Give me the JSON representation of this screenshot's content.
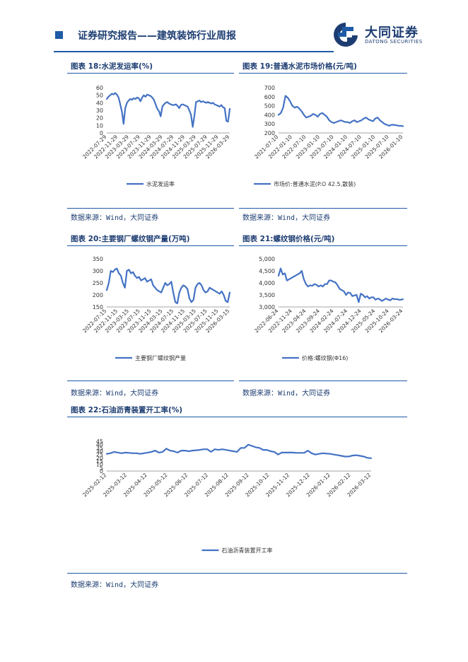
{
  "header": {
    "title": "证券研究报告——建筑装饰行业周报",
    "logo_cn": "大同证券",
    "logo_en": "DATONG SECURITIES"
  },
  "footer": {
    "page_number": ""
  },
  "colors": {
    "line": "#4472c4",
    "text": "#1d3d72",
    "rule": "#1f5aa6"
  },
  "charts": [
    {
      "figure_title": "图表 18:水泥发运率(%)",
      "source": "数据来源：Wind，大同证券"
    },
    {
      "figure_title": "图表 19:普通水泥市场价格(元/吨)",
      "source": "数据来源：Wind，大同证券"
    },
    {
      "figure_title": "图表 20:主要钢厂螺纹钢产量(万吨)",
      "source": "数据来源：Wind，大同证券"
    },
    {
      "figure_title": "图表 21:螺纹钢价格(元/吨)",
      "source": "数据来源：Wind，大同证券"
    },
    {
      "figure_title": "图表 22:石油沥青装置开工率(%)",
      "source": "数据来源：Wind，大同证券"
    }
  ],
  "chart_data": [
    {
      "type": "line",
      "title": "水泥发运率(%)",
      "yticks": [
        "0",
        "10",
        "20",
        "30",
        "40",
        "50",
        "60"
      ],
      "ylim": [
        0,
        60
      ],
      "xticks": [
        "2022-07-29",
        "2022-11-29",
        "2023-03-29",
        "2023-07-29",
        "2023-11-29",
        "2024-03-29",
        "2024-07-29",
        "2024-11-29",
        "2025-03-29",
        "2025-07-29",
        "2025-11-29",
        "2026-03-29"
      ],
      "series": [
        {
          "name": "水泥发运率",
          "values": [
            45,
            48,
            50,
            52,
            51,
            53,
            51,
            47,
            38,
            28,
            12,
            33,
            40,
            43,
            45,
            44,
            46,
            45,
            47,
            46,
            42,
            47,
            50,
            48,
            51,
            50,
            49,
            47,
            44,
            38,
            32,
            29,
            22,
            35,
            38,
            40,
            41,
            39,
            38,
            37,
            37,
            38,
            36,
            33,
            37,
            38,
            37,
            36,
            35,
            30,
            24,
            8,
            22,
            41,
            42,
            43,
            41,
            42,
            41,
            40,
            41,
            40,
            39,
            40,
            38,
            37,
            36,
            35,
            37,
            34,
            33,
            16,
            15,
            32
          ]
        }
      ]
    },
    {
      "type": "line",
      "title": "普通水泥市场价格(元/吨)",
      "yticks": [
        "200",
        "300",
        "400",
        "500",
        "600",
        "700"
      ],
      "ylim": [
        200,
        700
      ],
      "xticks": [
        "2021-07-10",
        "2022-01-10",
        "2022-07-10",
        "2023-01-10",
        "2023-07-10",
        "2024-01-10",
        "2024-07-10",
        "2025-01-10",
        "2025-07-10",
        "2026-01-10"
      ],
      "series": [
        {
          "name": "市场价:普通水泥(P.O 42.5,散装)",
          "values": [
            400,
            420,
            480,
            610,
            590,
            550,
            500,
            480,
            490,
            470,
            440,
            400,
            370,
            380,
            390,
            410,
            400,
            380,
            410,
            420,
            400,
            380,
            340,
            320,
            310,
            320,
            330,
            340,
            330,
            320,
            320,
            310,
            330,
            340,
            320,
            330,
            340,
            360,
            370,
            350,
            340,
            330,
            360,
            370,
            340,
            320,
            300,
            290,
            280,
            290,
            290,
            285,
            280,
            280,
            275
          ]
        }
      ]
    },
    {
      "type": "line",
      "title": "主要钢厂螺纹钢产量(万吨)",
      "yticks": [
        "150",
        "200",
        "250",
        "300",
        "350"
      ],
      "ylim": [
        150,
        350
      ],
      "xticks": [
        "2022-07-15",
        "2022-11-15",
        "2023-03-15",
        "2023-07-15",
        "2023-11-15",
        "2024-03-15",
        "2024-07-15",
        "2024-11-15",
        "2025-03-15",
        "2025-07-15",
        "2025-11-15",
        "2026-03-15"
      ],
      "series": [
        {
          "name": "主要钢厂螺纹钢产量",
          "values": [
            220,
            250,
            300,
            295,
            305,
            310,
            290,
            280,
            250,
            230,
            300,
            305,
            290,
            295,
            280,
            270,
            275,
            260,
            265,
            270,
            255,
            260,
            265,
            240,
            230,
            220,
            215,
            210,
            230,
            250,
            240,
            245,
            255,
            210,
            170,
            165,
            210,
            230,
            240,
            235,
            225,
            185,
            170,
            180,
            230,
            245,
            250,
            240,
            220,
            210,
            215,
            230,
            225,
            220,
            215,
            210,
            205,
            215,
            200,
            175,
            170,
            210
          ]
        }
      ]
    },
    {
      "type": "line",
      "title": "螺纹钢价格(元/吨)",
      "yticks": [
        "3,000",
        "3,500",
        "4,000",
        "4,500",
        "5,000"
      ],
      "ylim": [
        3000,
        5000
      ],
      "xticks": [
        "2022-06-24",
        "2022-11-24",
        "2023-04-24",
        "2023-09-24",
        "2024-02-24",
        "2024-07-24",
        "2024-12-24",
        "2025-05-24",
        "2025-10-24",
        "2026-03-24"
      ],
      "series": [
        {
          "name": "价格:螺纹钢(Φ16)",
          "values": [
            4300,
            4600,
            4350,
            4400,
            4100,
            4150,
            4200,
            4250,
            4300,
            4350,
            4400,
            4500,
            4150,
            3950,
            3850,
            3900,
            3880,
            3950,
            3920,
            3850,
            3900,
            3850,
            3950,
            3950,
            4100,
            4100,
            4050,
            4020,
            3900,
            3750,
            3700,
            3650,
            3500,
            3600,
            3580,
            3450,
            3480,
            3500,
            3200,
            3550,
            3500,
            3400,
            3450,
            3350,
            3400,
            3400,
            3300,
            3350,
            3320,
            3250,
            3300,
            3350,
            3300,
            3280,
            3350,
            3320,
            3330,
            3300,
            3300,
            3320
          ]
        }
      ]
    },
    {
      "type": "line",
      "title": "石油沥青装置开工率(%)",
      "yticks": [
        "0",
        "5",
        "10",
        "15",
        "20",
        "25",
        "30",
        "35",
        "40",
        "45"
      ],
      "ylim": [
        0,
        45
      ],
      "xticks": [
        "2025-02-12",
        "2025-03-12",
        "2025-04-12",
        "2025-05-12",
        "2025-06-12",
        "2025-07-12",
        "2025-08-12",
        "2025-09-12",
        "2025-10-12",
        "2025-11-12",
        "2025-12-12",
        "2026-01-12",
        "2026-02-12",
        "2026-03-12"
      ],
      "series": [
        {
          "name": "石油沥青装置开工率",
          "values": [
            26,
            27,
            29,
            28,
            27,
            28,
            27.5,
            27,
            27,
            26,
            27,
            28,
            29,
            31,
            28,
            29,
            34,
            31,
            30,
            28,
            31,
            31,
            30,
            31,
            31.5,
            32,
            33,
            33,
            29,
            33,
            32,
            33,
            32,
            31,
            30,
            29,
            35,
            35,
            40,
            38,
            36,
            35,
            32,
            32,
            30,
            29,
            25,
            28,
            28,
            28,
            28,
            27.5,
            27.5,
            27.5,
            31,
            27,
            25,
            26,
            27,
            26.5,
            26,
            25,
            24,
            23,
            22,
            22,
            23.5,
            24,
            23,
            22,
            20,
            19.5
          ]
        }
      ]
    }
  ]
}
